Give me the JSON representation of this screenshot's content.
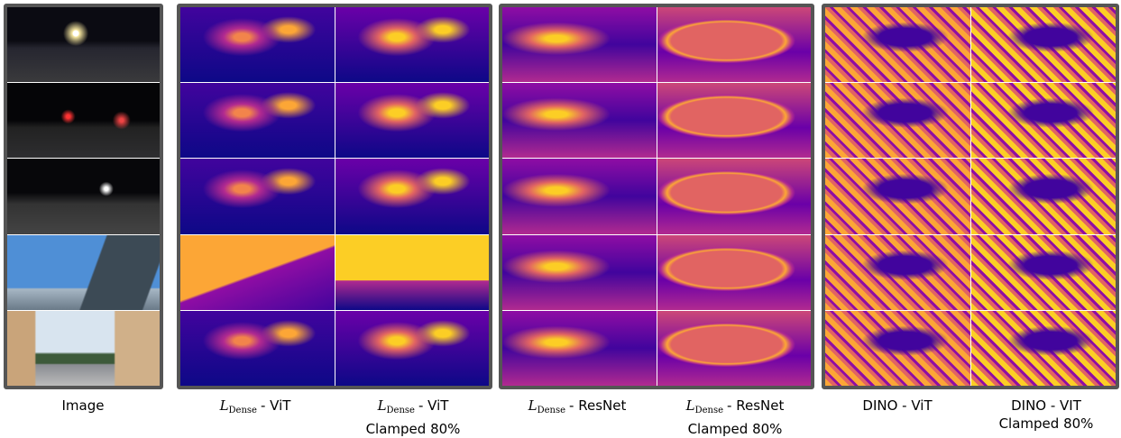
{
  "captions": [
    {
      "text": "Image"
    },
    {
      "symbol": "L",
      "subscript": "Dense",
      "text": "- ViT"
    },
    {
      "symbol": "L",
      "subscript": "Dense",
      "text": "- ViT",
      "note": "Clamped 80%"
    },
    {
      "symbol": "L",
      "subscript": "Dense",
      "text": "- ResNet"
    },
    {
      "symbol": "L",
      "subscript": "Dense",
      "text": "- ResNet",
      "note": "Clamped 80%"
    },
    {
      "text": "DINO - ViT"
    },
    {
      "text": "DINO - VIT",
      "note": "Clamped 80%"
    }
  ]
}
